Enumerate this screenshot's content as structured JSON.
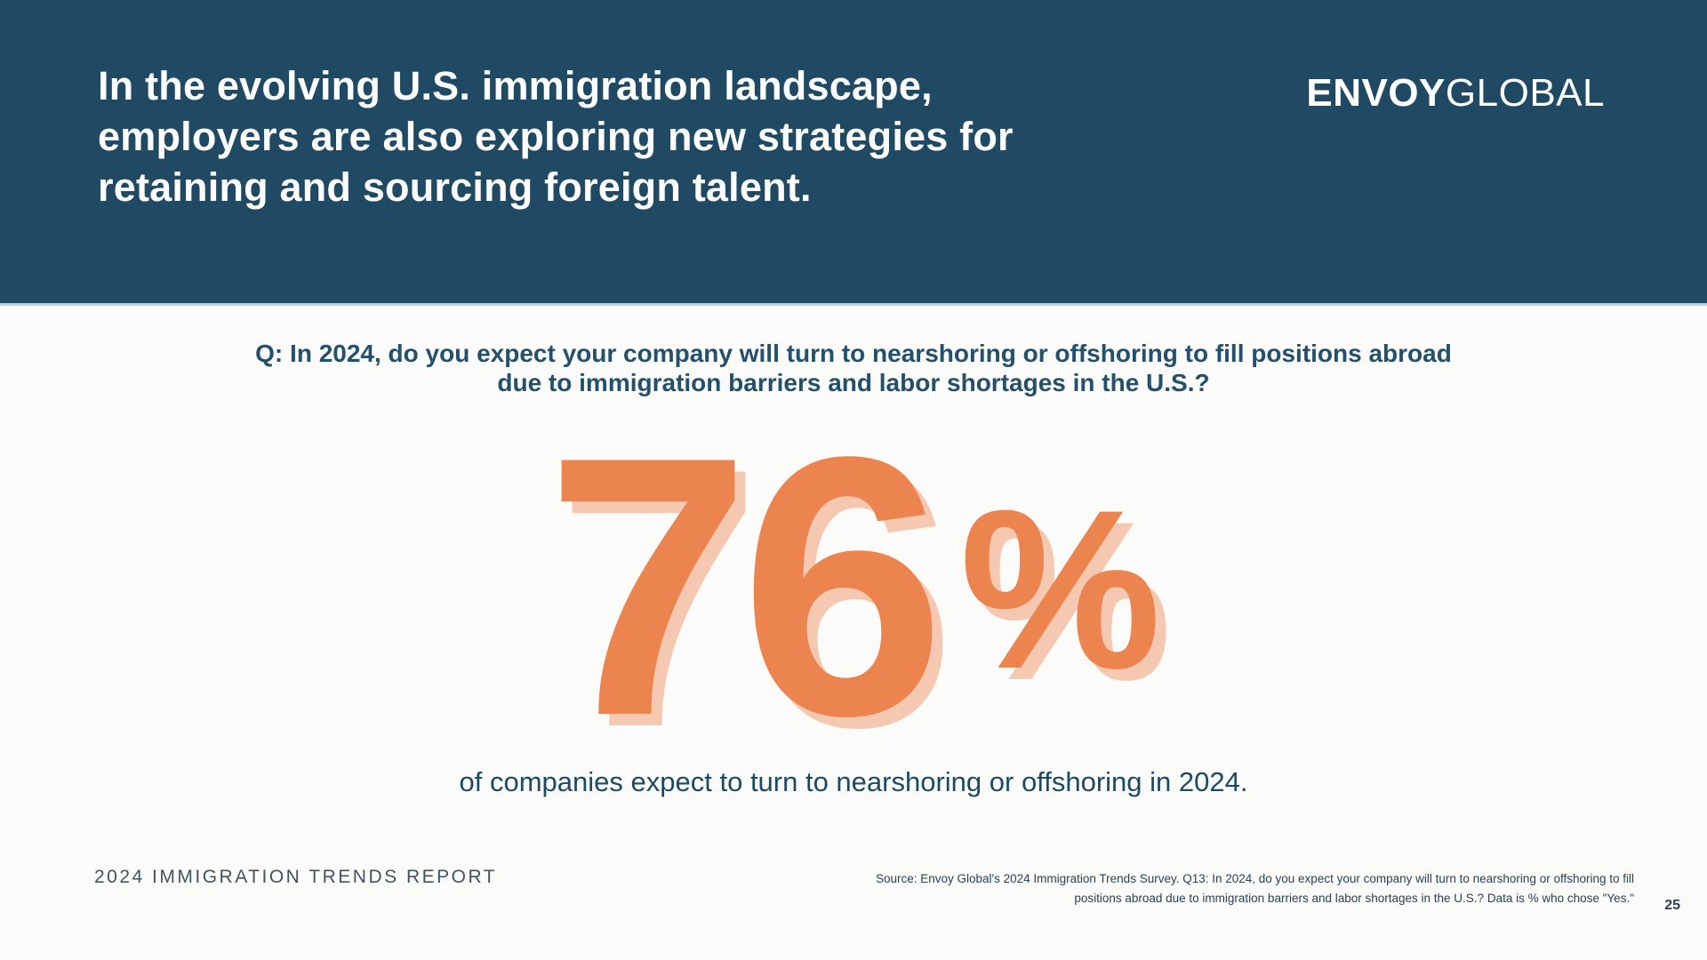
{
  "header": {
    "headline_lines": [
      "In the evolving U.S. immigration landscape,",
      "employers are also exploring new strategies for",
      "retaining and sourcing foreign talent."
    ],
    "logo": {
      "bold": "ENVOY",
      "light": "GLOBAL"
    }
  },
  "question": {
    "lines": [
      "Q: In 2024, do you expect your company will turn to nearshoring or offshoring to fill positions abroad",
      "due to immigration barriers and labor shortages in the U.S.?"
    ]
  },
  "stat": {
    "value": "76",
    "unit": "%",
    "meaning": "of companies expect to turn to nearshoring or offshoring in 2024."
  },
  "caption": "of companies expect to turn to nearshoring or offshoring in 2024.",
  "footer": {
    "report_label": "2024 IMMIGRATION TRENDS REPORT",
    "source_lines": [
      "Source: Envoy Global's 2024 Immigration Trends Survey. Q13: In 2024, do you expect your company will turn to nearshoring or offshoring to fill",
      "positions abroad due to immigration barriers and labor shortages in the U.S.? Data is % who chose \"Yes.\""
    ],
    "page_number": "25"
  },
  "colors": {
    "band_background": "#204a63",
    "headline_text": "#fdfdfd",
    "body_background": "#fbfbf9",
    "question_text": "#24506b",
    "stat_orange": "#ec8450",
    "stat_shadow": "#f5c9b1",
    "footer_text": "#2c4152"
  }
}
